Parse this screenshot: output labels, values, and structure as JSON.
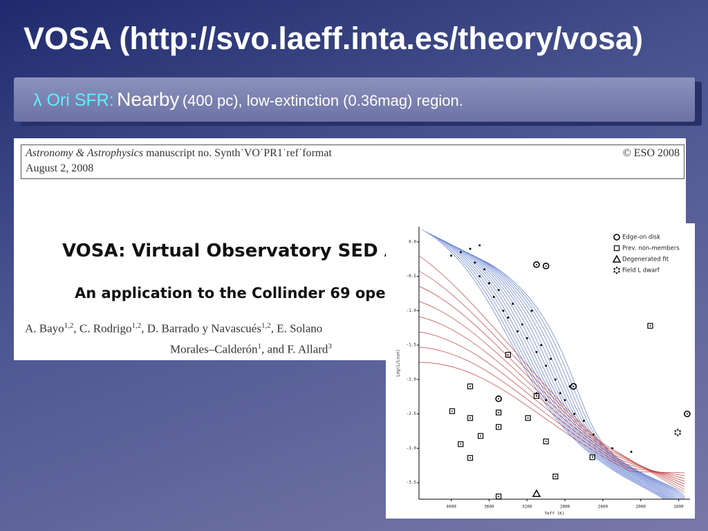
{
  "slide": {
    "title": "VOSA (http://svo.laeff.inta.es/theory/vosa)",
    "banner": {
      "label": "λ Ori SFR:",
      "lead": "Nearby",
      "rest": "(400 pc), low-extinction (0.36mag) region."
    }
  },
  "paper": {
    "journal": "Astronomy & Astrophysics",
    "manuscript": " manuscript no. Synth˙VO˙PR1˙ref˙format",
    "copyright": "© ESO 2008",
    "date": "August 2, 2008",
    "title": "VOSA: Virtual Observatory SED A",
    "subtitle": "An application to the Collinder 69 ope",
    "authors": [
      [
        {
          "text": "A. Bayo",
          "sup": "1,2"
        },
        {
          "text": ", C. Rodrigo",
          "sup": "1,2"
        },
        {
          "text": ", D. Barrado y Navascués",
          "sup": "1,2"
        },
        {
          "text": ", E. Solano"
        }
      ],
      [
        {
          "text": "Morales–Calderón",
          "sup": "1"
        },
        {
          "text": ", and F. Allard",
          "sup": "3"
        }
      ]
    ]
  },
  "figure": {
    "x_label": "Teff (K)",
    "y_label": "Log(L/Lsun)",
    "xlim": [
      4340,
      1480
    ],
    "ylim": [
      -3.74,
      0.22
    ],
    "xticks": [
      4000,
      3600,
      3200,
      2800,
      2400,
      2000,
      1600
    ],
    "yticks": [
      {
        "value": 0,
        "label": "0.0"
      },
      -0.5,
      {
        "value": -1,
        "label": "-1.0"
      },
      -1.5,
      {
        "value": -2,
        "label": "-2.0"
      },
      -2.5,
      {
        "value": -3,
        "label": "-3.0"
      },
      -3.5
    ],
    "series": [
      {
        "name": "Edge-on disk",
        "marker": "circle",
        "x": [
          3100,
          3000,
          2710,
          3500,
          1510
        ],
        "y": [
          -0.33,
          -0.35,
          -2.1,
          -2.28,
          -2.5
        ]
      },
      {
        "name": "Prev. non-members",
        "marker": "square",
        "x": [
          3800,
          3990,
          3800,
          3500,
          3500,
          3900,
          3800,
          3690,
          3400,
          3100,
          3190,
          3000,
          2510,
          2900,
          3500,
          1900
        ],
        "y": [
          -2.1,
          -2.46,
          -2.56,
          -2.48,
          -2.69,
          -2.94,
          -3.14,
          -2.82,
          -1.64,
          -2.24,
          -2.56,
          -2.9,
          -3.13,
          -3.41,
          -3.7,
          -1.22
        ]
      },
      {
        "name": "Degenerated fit",
        "marker": "triangle",
        "x": [
          3100
        ],
        "y": [
          -3.66
        ]
      },
      {
        "name": "Field L dwarf",
        "marker": "star",
        "x": [
          1610
        ],
        "y": [
          -2.77
        ]
      },
      {
        "marker": "dot",
        "x": [
          4000,
          3900,
          3800,
          3700,
          3750,
          3700,
          3650,
          3600,
          3550,
          3500,
          3450,
          3400,
          3350,
          3300,
          3250,
          3200,
          3150,
          3100,
          3050,
          3000,
          2950,
          2900,
          2850,
          2800,
          2750,
          2700,
          2600,
          2500,
          2300,
          2100,
          3100,
          3000
        ],
        "y": [
          -0.2,
          -0.15,
          -0.1,
          -0.05,
          -0.3,
          -0.5,
          -0.4,
          -0.6,
          -0.8,
          -0.7,
          -1.0,
          -1.1,
          -0.9,
          -1.3,
          -1.2,
          -1.4,
          -1.0,
          -1.6,
          -1.5,
          -1.8,
          -1.7,
          -2.0,
          -2.2,
          -2.3,
          -2.1,
          -2.5,
          -2.6,
          -2.8,
          -3.0,
          -3.05,
          -2.2,
          -2.3
        ]
      }
    ]
  }
}
